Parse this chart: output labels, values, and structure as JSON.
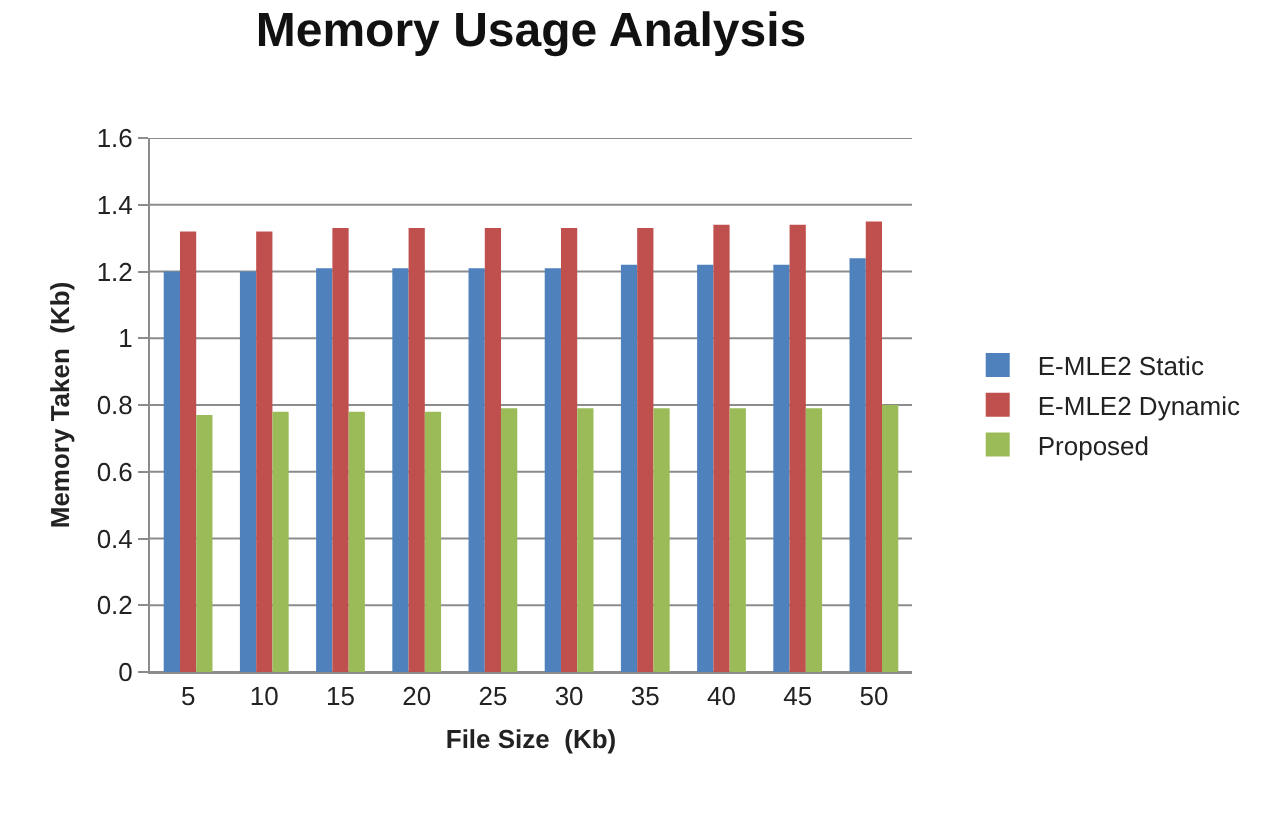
{
  "chart_data": {
    "type": "bar",
    "title": "Memory Usage Analysis",
    "xlabel": "File Size  (Kb)",
    "ylabel": "Memory Taken  (Kb)",
    "categories": [
      "5",
      "10",
      "15",
      "20",
      "25",
      "30",
      "35",
      "40",
      "45",
      "50"
    ],
    "series": [
      {
        "name": "E-MLE2 Static",
        "color": "#4f81bd",
        "values": [
          1.2,
          1.2,
          1.21,
          1.21,
          1.21,
          1.21,
          1.22,
          1.22,
          1.22,
          1.24
        ]
      },
      {
        "name": "E-MLE2 Dynamic",
        "color": "#c0504d",
        "values": [
          1.32,
          1.32,
          1.33,
          1.33,
          1.33,
          1.33,
          1.33,
          1.34,
          1.34,
          1.35
        ]
      },
      {
        "name": "Proposed",
        "color": "#9bbb59",
        "values": [
          0.77,
          0.78,
          0.78,
          0.78,
          0.79,
          0.79,
          0.79,
          0.79,
          0.79,
          0.8
        ]
      }
    ],
    "ylim": [
      0,
      1.6
    ],
    "yticks": [
      0,
      0.2,
      0.4,
      0.6,
      0.8,
      1,
      1.2,
      1.4,
      1.6
    ],
    "grid": "y",
    "legend": "right"
  }
}
